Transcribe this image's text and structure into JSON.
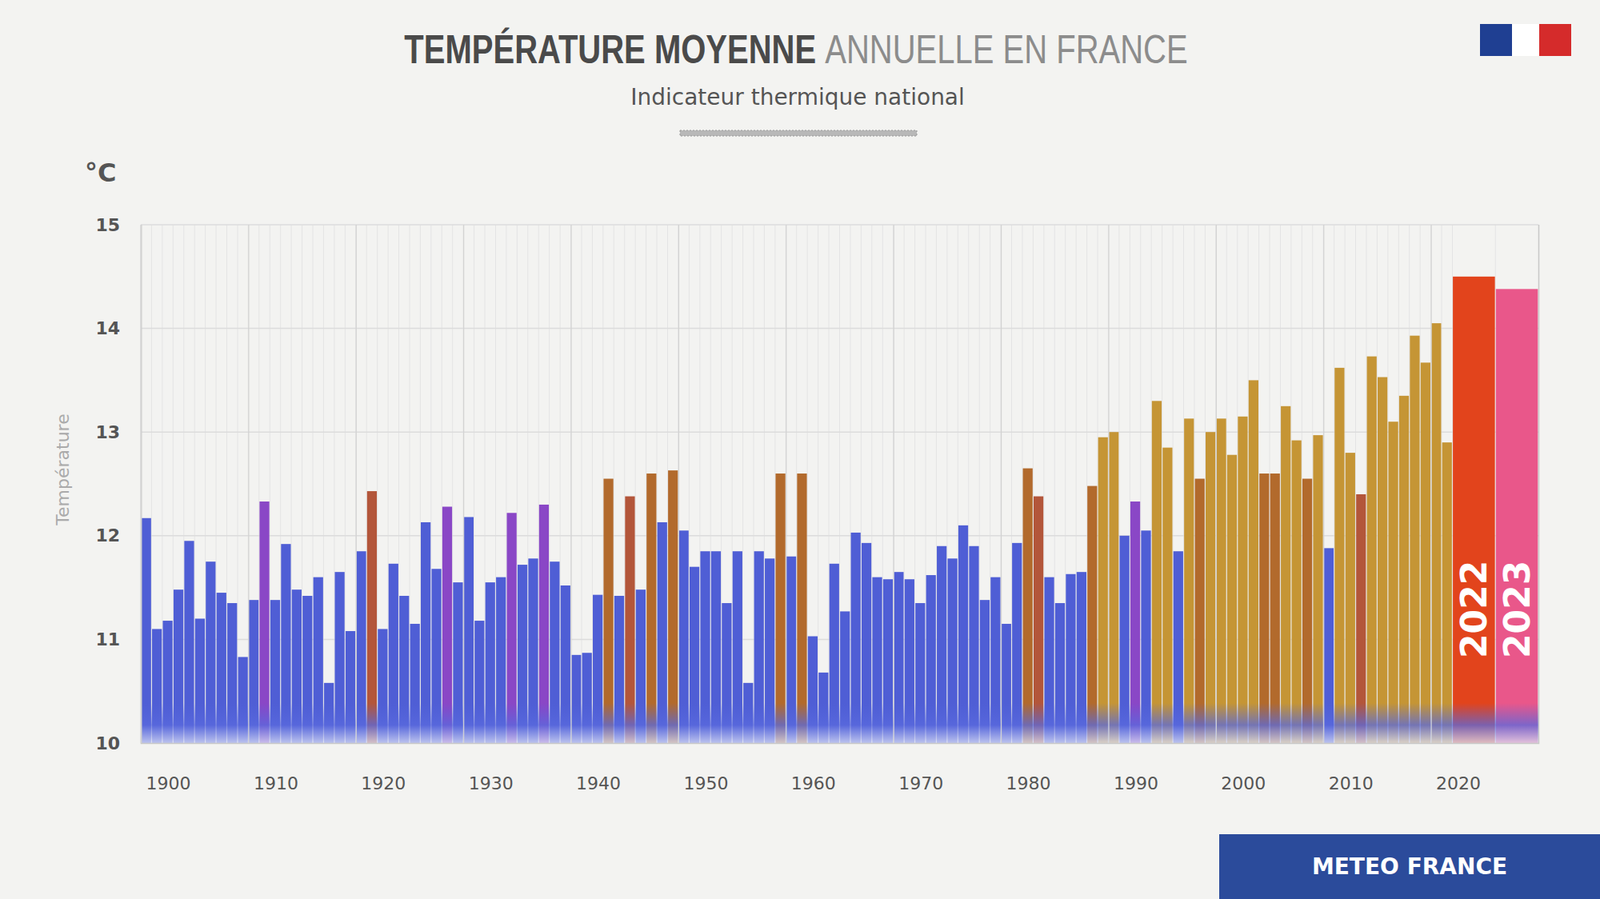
{
  "chart_data": {
    "type": "bar",
    "title": [
      "TEMPÉRATURE MOYENNE",
      "ANNUELLE EN FRANCE"
    ],
    "subtitle": "Indicateur thermique national",
    "unit": "°C",
    "y_label": "Température",
    "source": "METEO FRANCE",
    "categories": [
      "1900",
      null,
      null,
      null,
      null,
      null,
      null,
      null,
      null,
      null,
      "1910",
      null,
      null,
      null,
      null,
      null,
      null,
      null,
      null,
      null,
      "1920",
      null,
      null,
      null,
      null,
      null,
      null,
      null,
      null,
      null,
      "1930",
      null,
      null,
      null,
      null,
      null,
      null,
      null,
      null,
      null,
      "1940",
      null,
      null,
      null,
      null,
      null,
      null,
      null,
      null,
      null,
      "1950",
      null,
      null,
      null,
      null,
      null,
      null,
      null,
      null,
      null,
      "1960",
      null,
      null,
      null,
      null,
      null,
      null,
      null,
      null,
      null,
      "1970",
      null,
      null,
      null,
      null,
      null,
      null,
      null,
      null,
      null,
      "1980",
      null,
      null,
      null,
      null,
      null,
      null,
      null,
      null,
      null,
      "1990",
      null,
      null,
      null,
      null,
      null,
      null,
      null,
      null,
      null,
      "2000",
      null,
      null,
      null,
      null,
      null,
      null,
      null,
      null,
      null,
      "2010",
      null,
      null,
      null,
      null,
      null,
      null,
      null,
      null,
      null,
      "2020",
      null,
      null,
      null
    ],
    "values": [
      12.17,
      11.1,
      11.18,
      11.48,
      11.95,
      11.2,
      11.75,
      11.45,
      11.35,
      10.83,
      11.38,
      12.33,
      11.38,
      11.92,
      11.48,
      11.42,
      11.6,
      10.58,
      11.65,
      11.08,
      11.85,
      12.43,
      11.1,
      11.73,
      11.42,
      11.15,
      12.13,
      11.68,
      12.28,
      11.55,
      12.18,
      11.18,
      11.55,
      11.6,
      12.22,
      11.72,
      11.78,
      12.3,
      11.75,
      11.52,
      10.85,
      10.87,
      11.43,
      12.55,
      11.42,
      12.38,
      11.48,
      12.6,
      12.13,
      12.63,
      12.05,
      11.7,
      11.85,
      11.85,
      11.35,
      11.85,
      10.58,
      11.85,
      11.78,
      12.6,
      11.8,
      12.6,
      11.03,
      10.68,
      11.73,
      11.27,
      12.03,
      11.93,
      11.6,
      11.58,
      11.65,
      11.58,
      11.35,
      11.62,
      11.9,
      11.78,
      12.1,
      11.9,
      11.38,
      11.6,
      11.15,
      11.93,
      12.65,
      12.38,
      11.6,
      11.35,
      11.63,
      11.65,
      12.48,
      12.95,
      13.0,
      12.0,
      12.33,
      12.05,
      13.3,
      12.85,
      11.85,
      13.13,
      12.55,
      13.0,
      13.13,
      12.78,
      13.15,
      13.5,
      12.6,
      12.6,
      13.25,
      12.92,
      12.55,
      12.97,
      11.88,
      13.62,
      12.8,
      12.4,
      13.73,
      13.53,
      13.1,
      13.35,
      13.93,
      13.67,
      14.05,
      12.9,
      14.5,
      14.38
    ],
    "colors": [
      "#4f5ed5",
      "#4f5ed5",
      "#4f5ed5",
      "#4f5ed5",
      "#4f5ed5",
      "#4f5ed5",
      "#4f5ed5",
      "#4f5ed5",
      "#4f5ed5",
      "#4f5ed5",
      "#4f5ed5",
      "#8a47c6",
      "#4f5ed5",
      "#4f5ed5",
      "#4f5ed5",
      "#4f5ed5",
      "#4f5ed5",
      "#4f5ed5",
      "#4f5ed5",
      "#4f5ed5",
      "#4f5ed5",
      "#b3563a",
      "#4f5ed5",
      "#4f5ed5",
      "#4f5ed5",
      "#4f5ed5",
      "#4f5ed5",
      "#4f5ed5",
      "#8a47c6",
      "#4f5ed5",
      "#4f5ed5",
      "#4f5ed5",
      "#4f5ed5",
      "#4f5ed5",
      "#8a47c6",
      "#4f5ed5",
      "#4f5ed5",
      "#8a47c6",
      "#4f5ed5",
      "#4f5ed5",
      "#4f5ed5",
      "#4f5ed5",
      "#4f5ed5",
      "#b26a2c",
      "#4f5ed5",
      "#b3563a",
      "#4f5ed5",
      "#b26a2c",
      "#4f5ed5",
      "#b26a2c",
      "#4f5ed5",
      "#4f5ed5",
      "#4f5ed5",
      "#4f5ed5",
      "#4f5ed5",
      "#4f5ed5",
      "#4f5ed5",
      "#4f5ed5",
      "#4f5ed5",
      "#b26a2c",
      "#4f5ed5",
      "#b26a2c",
      "#4f5ed5",
      "#4f5ed5",
      "#4f5ed5",
      "#4f5ed5",
      "#4f5ed5",
      "#4f5ed5",
      "#4f5ed5",
      "#4f5ed5",
      "#4f5ed5",
      "#4f5ed5",
      "#4f5ed5",
      "#4f5ed5",
      "#4f5ed5",
      "#4f5ed5",
      "#4f5ed5",
      "#4f5ed5",
      "#4f5ed5",
      "#4f5ed5",
      "#4f5ed5",
      "#4f5ed5",
      "#b26a2c",
      "#b3563a",
      "#4f5ed5",
      "#4f5ed5",
      "#4f5ed5",
      "#4f5ed5",
      "#b26a2c",
      "#c59535",
      "#c59535",
      "#4f5ed5",
      "#8a47c6",
      "#4f5ed5",
      "#c59535",
      "#c59535",
      "#4f5ed5",
      "#c59535",
      "#b26a2c",
      "#c59535",
      "#c59535",
      "#c59535",
      "#c59535",
      "#c59535",
      "#b26a2c",
      "#b26a2c",
      "#c59535",
      "#c59535",
      "#b26a2c",
      "#c59535",
      "#4f5ed5",
      "#c59535",
      "#c59535",
      "#b3563a",
      "#c59535",
      "#c59535",
      "#c59535",
      "#c59535",
      "#c59535",
      "#c59535",
      "#c59535",
      "#c59535",
      "#e2441c",
      "#e9578a"
    ],
    "annotations": [
      {
        "text": "2022",
        "index": 122
      },
      {
        "text": "2023",
        "index": 123
      }
    ],
    "ylim": [
      10,
      15
    ],
    "yticks": [
      10,
      11,
      12,
      13,
      14,
      15
    ],
    "grid": true
  }
}
